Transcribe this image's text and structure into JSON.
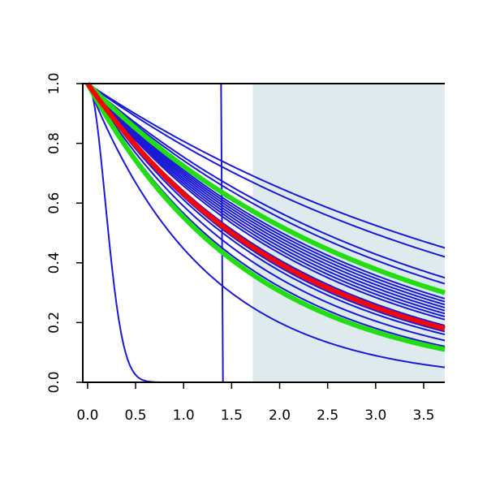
{
  "chart_data": {
    "type": "line",
    "title": "",
    "xlabel": "",
    "ylabel": "",
    "xlim": [
      -0.05,
      3.72
    ],
    "ylim": [
      0.0,
      1.0
    ],
    "x_ticks": [
      "0.0",
      "0.5",
      "1.0",
      "1.5",
      "2.0",
      "2.5",
      "3.0",
      "3.5"
    ],
    "y_ticks": [
      "0.0",
      "0.2",
      "0.4",
      "0.6",
      "0.8",
      "1.0"
    ],
    "grid": false,
    "legend": "none",
    "shaded_region": {
      "x_from": 1.72,
      "x_to": 3.72,
      "color": "#deeaeb"
    },
    "colors": {
      "blue": "#1a1ad6",
      "red": "#ff0000",
      "green": "#22dd11"
    },
    "series": [
      {
        "color": "blue",
        "form": "step",
        "drop_at": 1.41,
        "end_value": 0.0
      },
      {
        "color": "blue",
        "form": "exp2",
        "end_value": 0.0,
        "at_x": 0.5
      },
      {
        "color": "blue",
        "form": "exp",
        "end_value": 0.05
      },
      {
        "color": "blue",
        "form": "exp",
        "end_value": 0.12
      },
      {
        "color": "blue",
        "form": "exp",
        "end_value": 0.14
      },
      {
        "color": "blue",
        "form": "exp",
        "end_value": 0.16
      },
      {
        "color": "blue",
        "form": "exp",
        "end_value": 0.17
      },
      {
        "color": "blue",
        "form": "exp",
        "end_value": 0.19
      },
      {
        "color": "blue",
        "form": "exp",
        "end_value": 0.21
      },
      {
        "color": "blue",
        "form": "exp",
        "end_value": 0.22
      },
      {
        "color": "blue",
        "form": "exp",
        "end_value": 0.23
      },
      {
        "color": "blue",
        "form": "exp",
        "end_value": 0.24
      },
      {
        "color": "blue",
        "form": "exp",
        "end_value": 0.25
      },
      {
        "color": "blue",
        "form": "exp",
        "end_value": 0.26
      },
      {
        "color": "blue",
        "form": "exp",
        "end_value": 0.27
      },
      {
        "color": "blue",
        "form": "exp",
        "end_value": 0.28
      },
      {
        "color": "blue",
        "form": "exp",
        "end_value": 0.33
      },
      {
        "color": "blue",
        "form": "exp",
        "end_value": 0.35
      },
      {
        "color": "blue",
        "form": "exp",
        "end_value": 0.42
      },
      {
        "color": "blue",
        "form": "exp",
        "end_value": 0.45
      },
      {
        "color": "green",
        "form": "exp",
        "end_value": 0.11,
        "thick": true
      },
      {
        "color": "green",
        "form": "exp",
        "end_value": 0.3,
        "thick": true
      },
      {
        "color": "red",
        "form": "exp",
        "end_value": 0.18,
        "thick": true
      }
    ]
  }
}
